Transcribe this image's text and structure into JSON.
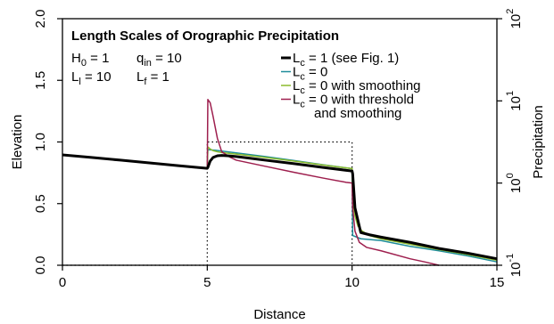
{
  "chart_data": {
    "type": "line",
    "title": "Length Scales of Orographic Precipitation",
    "xlabel": "Distance",
    "ylabel": "Elevation",
    "y2label": "Precipitation",
    "xlim": [
      0,
      15
    ],
    "ylim": [
      0,
      2
    ],
    "y2scale": "log",
    "y2lim": [
      0.1,
      100
    ],
    "x_ticks": [
      "0",
      "5",
      "10",
      "15"
    ],
    "y_ticks": [
      "0.0",
      "0.5",
      "1.0",
      "1.5",
      "2.0"
    ],
    "y2_ticks": [
      {
        "base": "10",
        "exp": "-1"
      },
      {
        "base": "10",
        "exp": "0"
      },
      {
        "base": "10",
        "exp": "1"
      },
      {
        "base": "10",
        "exp": "2"
      }
    ],
    "params": {
      "line1": [
        {
          "base": "H",
          "sub": "0",
          "rest": " = 1"
        },
        {
          "base": "q",
          "sub": "in",
          "rest": " = 10"
        }
      ],
      "line2": [
        {
          "base": "L",
          "sub": "l",
          "rest": " = 10"
        },
        {
          "base": "L",
          "sub": "f",
          "rest": " = 1"
        }
      ]
    },
    "legend_position": "top-right",
    "elevation": {
      "style": "dotted",
      "color": "#000000",
      "x": [
        0,
        5,
        5,
        10,
        10,
        15
      ],
      "y": [
        0,
        0,
        1.0,
        1.0,
        0,
        0
      ]
    },
    "series": [
      {
        "legend": {
          "base": "L",
          "sub": "c",
          "rest": " = 1 (see Fig. 1)"
        },
        "color": "#000000",
        "width": 3,
        "x": [
          0,
          1,
          2,
          3,
          4,
          5,
          5.02,
          5.1,
          5.2,
          5.35,
          5.5,
          5.7,
          6,
          6.5,
          7,
          8,
          9,
          9.8,
          10,
          10.02,
          10.1,
          10.3,
          10.6,
          11,
          12,
          13,
          14,
          15
        ],
        "y": [
          2.2,
          2.05,
          1.9,
          1.76,
          1.63,
          1.51,
          1.55,
          1.85,
          2.05,
          2.15,
          2.17,
          2.15,
          2.1,
          2.0,
          1.9,
          1.72,
          1.55,
          1.43,
          1.4,
          1.3,
          0.5,
          0.25,
          0.235,
          0.22,
          0.19,
          0.16,
          0.14,
          0.12
        ]
      },
      {
        "legend": {
          "base": "L",
          "sub": "c",
          "rest": " = 0"
        },
        "color": "#1e8c9a",
        "width": 1.5,
        "x": [
          0,
          1,
          2,
          3,
          4,
          5,
          5.02,
          5.3,
          6,
          7,
          8,
          9,
          9.8,
          10,
          10.02,
          10.3,
          11,
          12,
          13,
          14,
          15
        ],
        "y": [
          2.2,
          2.05,
          1.9,
          1.76,
          1.63,
          1.51,
          2.55,
          2.5,
          2.33,
          2.1,
          1.88,
          1.67,
          1.53,
          1.5,
          0.23,
          0.21,
          0.2,
          0.17,
          0.15,
          0.13,
          0.11
        ]
      },
      {
        "legend": {
          "base": "L",
          "sub": "c",
          "rest": " = 0 with smoothing"
        },
        "color": "#8bbb2c",
        "width": 1.5,
        "x": [
          0,
          1,
          2,
          3,
          4,
          5,
          5.02,
          5.1,
          5.2,
          5.35,
          5.5,
          6,
          7,
          8,
          9,
          9.8,
          10,
          10.02,
          10.1,
          10.2,
          10.35,
          10.6,
          11,
          12,
          13,
          14,
          15
        ],
        "y": [
          2.2,
          2.05,
          1.9,
          1.76,
          1.63,
          1.51,
          2.75,
          2.6,
          2.48,
          2.4,
          2.35,
          2.25,
          2.05,
          1.85,
          1.66,
          1.53,
          1.5,
          0.65,
          0.4,
          0.3,
          0.26,
          0.23,
          0.21,
          0.18,
          0.155,
          0.135,
          0.115
        ]
      },
      {
        "legend": {
          "base": "L",
          "sub": "c",
          "rest": " = 0 with threshold"
        },
        "legend2": "and smoothing",
        "color": "#9e1f4e",
        "width": 1.5,
        "x": [
          0,
          1,
          2,
          3,
          4,
          5,
          5.02,
          5.1,
          5.2,
          5.35,
          5.5,
          5.8,
          6,
          7,
          8,
          9,
          9.8,
          10,
          10.02,
          10.1,
          10.25,
          10.5,
          11,
          12,
          12.5,
          13
        ],
        "y": [
          2.2,
          2.05,
          1.9,
          1.76,
          1.63,
          1.51,
          10.4,
          9.5,
          6.5,
          3.5,
          2.4,
          2.05,
          1.9,
          1.6,
          1.35,
          1.15,
          1.02,
          1.0,
          0.5,
          0.26,
          0.19,
          0.165,
          0.15,
          0.12,
          0.11,
          0.1
        ]
      }
    ]
  }
}
